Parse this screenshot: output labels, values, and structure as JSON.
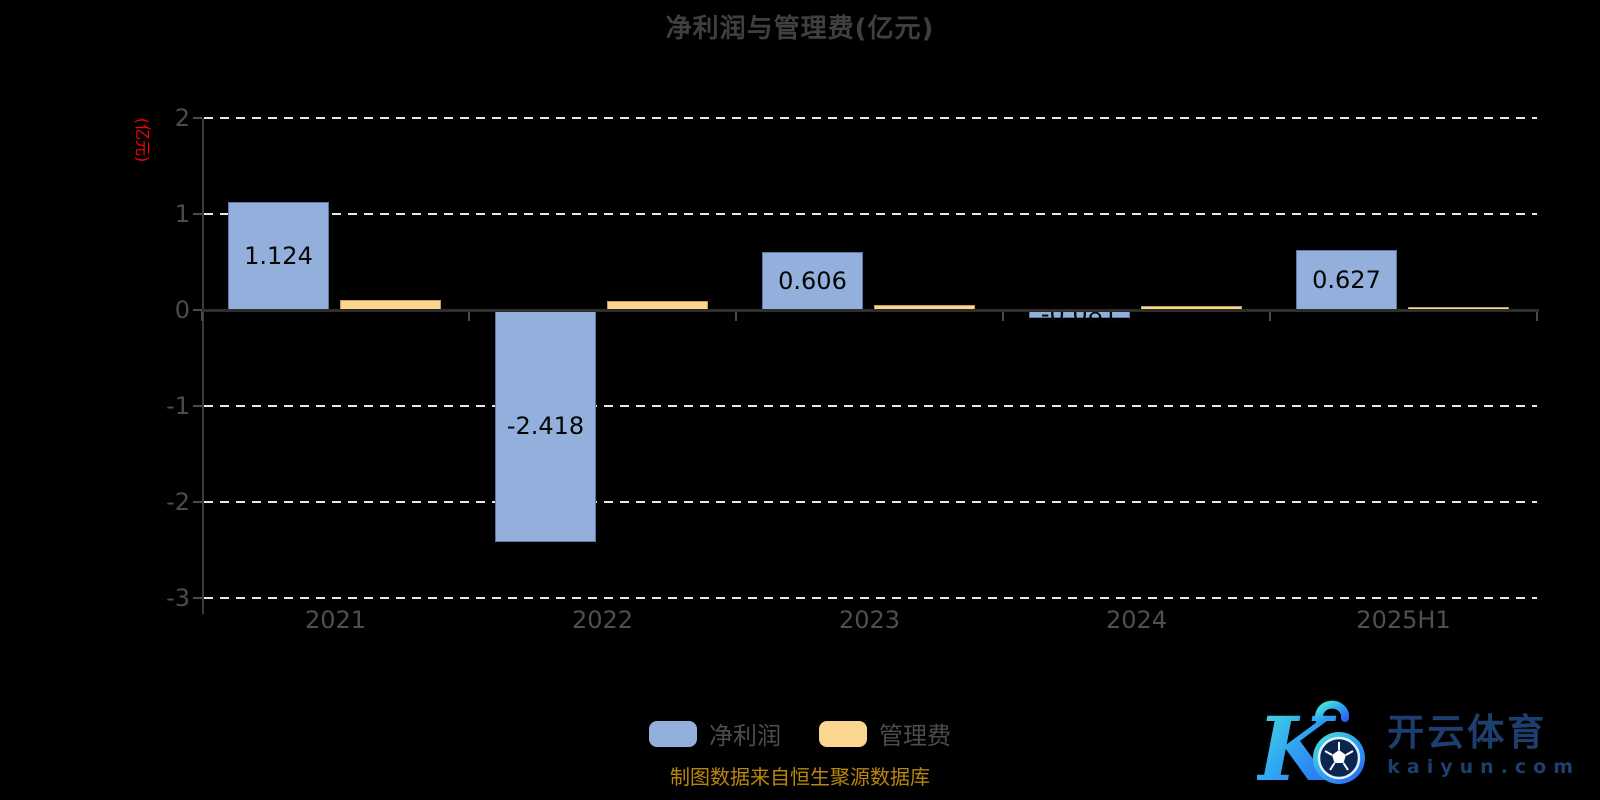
{
  "title": "净利润与管理费(亿元)",
  "y_axis": {
    "name": "(亿元)",
    "tick_labels": [
      "2",
      "1",
      "0",
      "-1",
      "-2",
      "-3"
    ],
    "max": 2,
    "min": -3
  },
  "x_axis": {
    "categories": [
      "2021",
      "2022",
      "2023",
      "2024",
      "2025H1"
    ]
  },
  "chart_data": {
    "type": "bar",
    "title": "净利润与管理费(亿元)",
    "categories": [
      "2021",
      "2022",
      "2023",
      "2024",
      "2025H1"
    ],
    "series": [
      {
        "name": "净利润",
        "key": "net-profit",
        "color": "#93b0dc",
        "border_color": "rgba(50,75,120,0.55)",
        "values": [
          1.124,
          -2.418,
          0.606,
          -0.081,
          0.627
        ],
        "data_labels": [
          "1.124",
          "-2.418",
          "0.606",
          "-0.081",
          "0.627"
        ],
        "labels_shown": true
      },
      {
        "name": "管理费",
        "key": "management-fee",
        "color": "#fbd690",
        "border_color": "rgba(150,110,40,0.55)",
        "values": [
          0.1,
          0.09,
          0.05,
          0.04,
          0.03
        ],
        "data_labels": [],
        "labels_shown": false
      }
    ],
    "ylabel": "(亿元)",
    "ylim": [
      -3,
      2
    ],
    "grid": true,
    "grid_style": "dashed-white",
    "background": "#000000",
    "legend_position": "bottom"
  },
  "legend": {
    "items": [
      {
        "label": "净利润",
        "key": "net-profit",
        "color": "#93b0dc"
      },
      {
        "label": "管理费",
        "key": "management-fee",
        "color": "#fbd690"
      }
    ]
  },
  "footer": {
    "source_note": "制图数据来自恒生聚源数据库"
  },
  "watermark": {
    "brand_cn": "开云体育",
    "brand_domain": "kaiyun.com"
  },
  "colors": {
    "net_profit_bar": "#93b0dc",
    "management_fee_bar": "#fbd690",
    "y_axis_name_red": "#ff0000",
    "tick_text": "#4c4c4c",
    "title_text": "#3f3f3f",
    "source_note_text": "#b8860b",
    "brand_navy": "#1d3e6f",
    "gridline": "#e8e8e8"
  }
}
